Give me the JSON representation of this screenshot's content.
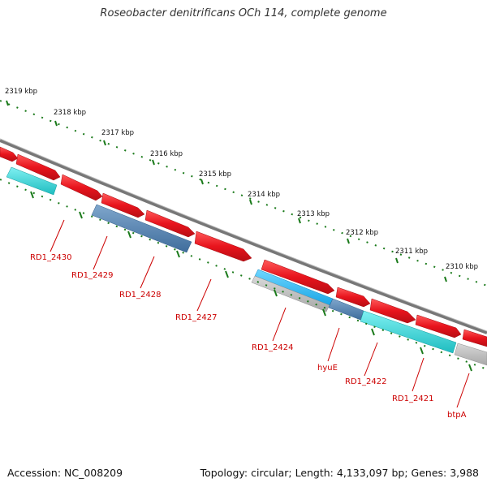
{
  "title": "Roseobacter denitrificans OCh 114, complete genome",
  "footer": {
    "accession": "Accession: NC_008209",
    "summary": "Topology: circular; Length: 4,133,097 bp; Genes: 3,988"
  },
  "colors": {
    "forward_gene": "#e8141d",
    "reverse_gene_cyan": "#23c9cc",
    "reverse_gene_blue": "#4f7fae",
    "reverse_gene_grey": "#b9b9b9",
    "backbone": "#777777",
    "tick": "#1a7a1a",
    "label": "#cc0000"
  },
  "scale_labels": [
    "2319 kbp",
    "2318 kbp",
    "2317 kbp",
    "2316 kbp",
    "2315 kbp",
    "2314 kbp",
    "2313 kbp",
    "2312 kbp",
    "2311 kbp",
    "2310 kbp"
  ],
  "gene_labels": [
    "RD1_2430",
    "RD1_2429",
    "RD1_2428",
    "RD1_2427",
    "RD1_2424",
    "hyuE",
    "RD1_2422",
    "RD1_2421",
    "btpA"
  ]
}
